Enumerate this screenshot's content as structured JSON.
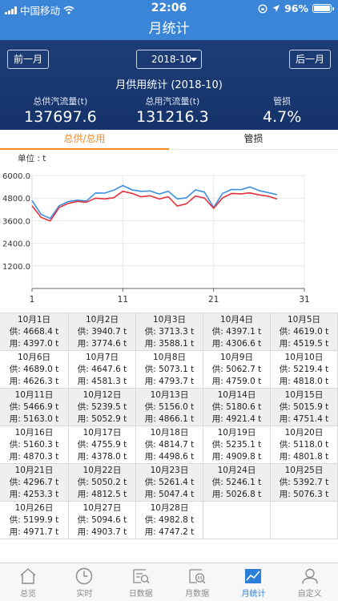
{
  "status_bar": {
    "carrier": "中国移动",
    "time": "22:06",
    "battery": "96%"
  },
  "title": "月统计",
  "header": {
    "prev_label": "前一月",
    "next_label": "后一月",
    "month": "2018-10",
    "summary_title": "月供用统计 (2018-10)",
    "stats": [
      {
        "label": "总供汽流量(t)",
        "value": "137697.6"
      },
      {
        "label": "总用汽流量(t)",
        "value": "131216.3"
      },
      {
        "label": "管损",
        "value": "4.7%"
      }
    ]
  },
  "tabs": [
    {
      "label": "总供/总用"
    },
    {
      "label": "管损"
    }
  ],
  "chart_data": {
    "type": "line",
    "unit_label": "单位 : t",
    "x": [
      1,
      2,
      3,
      4,
      5,
      6,
      7,
      8,
      9,
      10,
      11,
      12,
      13,
      14,
      15,
      16,
      17,
      18,
      19,
      20,
      21,
      22,
      23,
      24,
      25,
      26,
      27,
      28
    ],
    "xticks": [
      "1",
      "11",
      "21",
      "31"
    ],
    "xlim": [
      1,
      31
    ],
    "yticks": [
      "1200.0",
      "2400.0",
      "3600.0",
      "4800.0",
      "6000.0"
    ],
    "ylim": [
      0,
      6000
    ],
    "grid": true,
    "series": [
      {
        "color": "#3d8fe0",
        "values": [
          4668.4,
          3940.7,
          3713.3,
          4397.1,
          4619.0,
          4689.0,
          4647.6,
          5073.1,
          5062.7,
          5219.4,
          5466.9,
          5239.5,
          5156.0,
          5180.6,
          5015.9,
          5160.3,
          4755.9,
          4814.7,
          5235.1,
          5118.0,
          4296.7,
          5050.2,
          5261.4,
          5246.1,
          5392.7,
          5199.9,
          5094.6,
          4982.8
        ]
      },
      {
        "color": "#e2333c",
        "values": [
          4397.0,
          3774.6,
          3588.1,
          4306.6,
          4519.5,
          4626.3,
          4581.3,
          4793.7,
          4759.0,
          4818.0,
          5163.0,
          5052.9,
          4866.1,
          4921.4,
          4751.4,
          4870.3,
          4378.0,
          4498.6,
          4909.8,
          4801.8,
          4253.3,
          4812.5,
          5047.4,
          5026.8,
          5076.3,
          4971.7,
          4903.7,
          4747.2
        ]
      }
    ]
  },
  "days": [
    {
      "date": "10月1日",
      "supply": "供: 4668.4 t",
      "use": "用: 4397.0 t"
    },
    {
      "date": "10月2日",
      "supply": "供: 3940.7 t",
      "use": "用: 3774.6 t"
    },
    {
      "date": "10月3日",
      "supply": "供: 3713.3 t",
      "use": "用: 3588.1 t"
    },
    {
      "date": "10月4日",
      "supply": "供: 4397.1 t",
      "use": "用: 4306.6 t"
    },
    {
      "date": "10月5日",
      "supply": "供: 4619.0 t",
      "use": "用: 4519.5 t"
    },
    {
      "date": "10月6日",
      "supply": "供: 4689.0 t",
      "use": "用: 4626.3 t"
    },
    {
      "date": "10月7日",
      "supply": "供: 4647.6 t",
      "use": "用: 4581.3 t"
    },
    {
      "date": "10月8日",
      "supply": "供: 5073.1 t",
      "use": "用: 4793.7 t"
    },
    {
      "date": "10月9日",
      "supply": "供: 5062.7 t",
      "use": "用: 4759.0 t"
    },
    {
      "date": "10月10日",
      "supply": "供: 5219.4 t",
      "use": "用: 4818.0 t"
    },
    {
      "date": "10月11日",
      "supply": "供: 5466.9 t",
      "use": "用: 5163.0 t"
    },
    {
      "date": "10月12日",
      "supply": "供: 5239.5 t",
      "use": "用: 5052.9 t"
    },
    {
      "date": "10月13日",
      "supply": "供: 5156.0 t",
      "use": "用: 4866.1 t"
    },
    {
      "date": "10月14日",
      "supply": "供: 5180.6 t",
      "use": "用: 4921.4 t"
    },
    {
      "date": "10月15日",
      "supply": "供: 5015.9 t",
      "use": "用: 4751.4 t"
    },
    {
      "date": "10月16日",
      "supply": "供: 5160.3 t",
      "use": "用: 4870.3 t"
    },
    {
      "date": "10月17日",
      "supply": "供: 4755.9 t",
      "use": "用: 4378.0 t"
    },
    {
      "date": "10月18日",
      "supply": "供: 4814.7 t",
      "use": "用: 4498.6 t"
    },
    {
      "date": "10月19日",
      "supply": "供: 5235.1 t",
      "use": "用: 4909.8 t"
    },
    {
      "date": "10月20日",
      "supply": "供: 5118.0 t",
      "use": "用: 4801.8 t"
    },
    {
      "date": "10月21日",
      "supply": "供: 4296.7 t",
      "use": "用: 4253.3 t"
    },
    {
      "date": "10月22日",
      "supply": "供: 5050.2 t",
      "use": "用: 4812.5 t"
    },
    {
      "date": "10月23日",
      "supply": "供: 5261.4 t",
      "use": "用: 5047.4 t"
    },
    {
      "date": "10月24日",
      "supply": "供: 5246.1 t",
      "use": "用: 5026.8 t"
    },
    {
      "date": "10月25日",
      "supply": "供: 5392.7 t",
      "use": "用: 5076.3 t"
    },
    {
      "date": "10月26日",
      "supply": "供: 5199.9 t",
      "use": "用: 4971.7 t"
    },
    {
      "date": "10月27日",
      "supply": "供: 5094.6 t",
      "use": "用: 4903.7 t"
    },
    {
      "date": "10月28日",
      "supply": "供: 4982.8 t",
      "use": "用: 4747.2 t"
    }
  ],
  "bottom_tabs": [
    {
      "label": "总览",
      "icon": "home-icon",
      "active": false
    },
    {
      "label": "实时",
      "icon": "clock-icon",
      "active": false
    },
    {
      "label": "日数据",
      "icon": "day-data-icon",
      "active": false
    },
    {
      "label": "月数据",
      "icon": "month-data-icon",
      "active": false
    },
    {
      "label": "月统计",
      "icon": "trend-chart-icon",
      "active": true
    },
    {
      "label": "自定义",
      "icon": "user-icon",
      "active": false
    }
  ]
}
